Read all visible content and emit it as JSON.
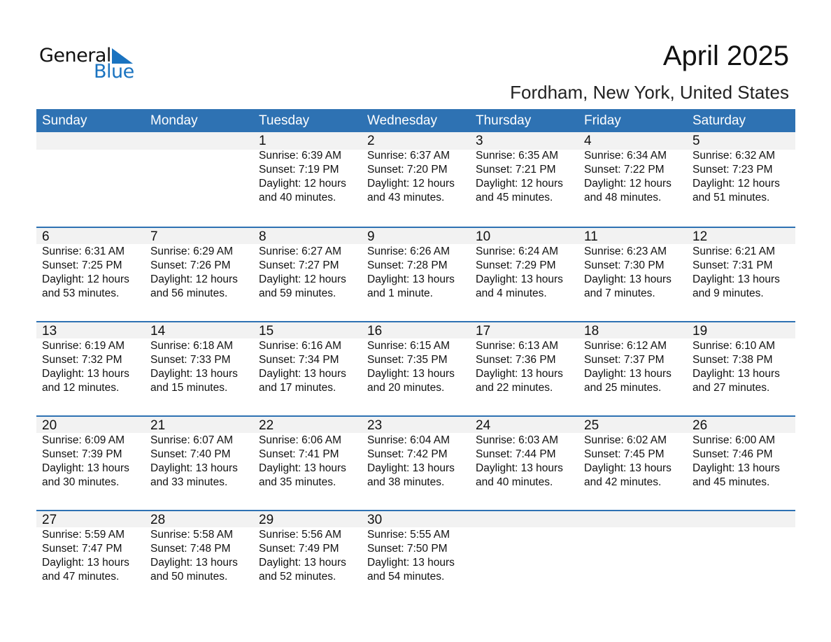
{
  "logo": {
    "text1": "General",
    "text2": "Blue"
  },
  "title": "April 2025",
  "subtitle": "Fordham, New York, United States",
  "colors": {
    "header": "#2e72b3",
    "band": "#f2f2f2",
    "logo_blue": "#1a73c0"
  },
  "weekdays": [
    "Sunday",
    "Monday",
    "Tuesday",
    "Wednesday",
    "Thursday",
    "Friday",
    "Saturday"
  ],
  "first_weekday_index": 2,
  "days": [
    {
      "d": "1",
      "sunrise": "Sunrise: 6:39 AM",
      "sunset": "Sunset: 7:19 PM",
      "daylight1": "Daylight: 12 hours",
      "daylight2": "and 40 minutes."
    },
    {
      "d": "2",
      "sunrise": "Sunrise: 6:37 AM",
      "sunset": "Sunset: 7:20 PM",
      "daylight1": "Daylight: 12 hours",
      "daylight2": "and 43 minutes."
    },
    {
      "d": "3",
      "sunrise": "Sunrise: 6:35 AM",
      "sunset": "Sunset: 7:21 PM",
      "daylight1": "Daylight: 12 hours",
      "daylight2": "and 45 minutes."
    },
    {
      "d": "4",
      "sunrise": "Sunrise: 6:34 AM",
      "sunset": "Sunset: 7:22 PM",
      "daylight1": "Daylight: 12 hours",
      "daylight2": "and 48 minutes."
    },
    {
      "d": "5",
      "sunrise": "Sunrise: 6:32 AM",
      "sunset": "Sunset: 7:23 PM",
      "daylight1": "Daylight: 12 hours",
      "daylight2": "and 51 minutes."
    },
    {
      "d": "6",
      "sunrise": "Sunrise: 6:31 AM",
      "sunset": "Sunset: 7:25 PM",
      "daylight1": "Daylight: 12 hours",
      "daylight2": "and 53 minutes."
    },
    {
      "d": "7",
      "sunrise": "Sunrise: 6:29 AM",
      "sunset": "Sunset: 7:26 PM",
      "daylight1": "Daylight: 12 hours",
      "daylight2": "and 56 minutes."
    },
    {
      "d": "8",
      "sunrise": "Sunrise: 6:27 AM",
      "sunset": "Sunset: 7:27 PM",
      "daylight1": "Daylight: 12 hours",
      "daylight2": "and 59 minutes."
    },
    {
      "d": "9",
      "sunrise": "Sunrise: 6:26 AM",
      "sunset": "Sunset: 7:28 PM",
      "daylight1": "Daylight: 13 hours",
      "daylight2": "and 1 minute."
    },
    {
      "d": "10",
      "sunrise": "Sunrise: 6:24 AM",
      "sunset": "Sunset: 7:29 PM",
      "daylight1": "Daylight: 13 hours",
      "daylight2": "and 4 minutes."
    },
    {
      "d": "11",
      "sunrise": "Sunrise: 6:23 AM",
      "sunset": "Sunset: 7:30 PM",
      "daylight1": "Daylight: 13 hours",
      "daylight2": "and 7 minutes."
    },
    {
      "d": "12",
      "sunrise": "Sunrise: 6:21 AM",
      "sunset": "Sunset: 7:31 PM",
      "daylight1": "Daylight: 13 hours",
      "daylight2": "and 9 minutes."
    },
    {
      "d": "13",
      "sunrise": "Sunrise: 6:19 AM",
      "sunset": "Sunset: 7:32 PM",
      "daylight1": "Daylight: 13 hours",
      "daylight2": "and 12 minutes."
    },
    {
      "d": "14",
      "sunrise": "Sunrise: 6:18 AM",
      "sunset": "Sunset: 7:33 PM",
      "daylight1": "Daylight: 13 hours",
      "daylight2": "and 15 minutes."
    },
    {
      "d": "15",
      "sunrise": "Sunrise: 6:16 AM",
      "sunset": "Sunset: 7:34 PM",
      "daylight1": "Daylight: 13 hours",
      "daylight2": "and 17 minutes."
    },
    {
      "d": "16",
      "sunrise": "Sunrise: 6:15 AM",
      "sunset": "Sunset: 7:35 PM",
      "daylight1": "Daylight: 13 hours",
      "daylight2": "and 20 minutes."
    },
    {
      "d": "17",
      "sunrise": "Sunrise: 6:13 AM",
      "sunset": "Sunset: 7:36 PM",
      "daylight1": "Daylight: 13 hours",
      "daylight2": "and 22 minutes."
    },
    {
      "d": "18",
      "sunrise": "Sunrise: 6:12 AM",
      "sunset": "Sunset: 7:37 PM",
      "daylight1": "Daylight: 13 hours",
      "daylight2": "and 25 minutes."
    },
    {
      "d": "19",
      "sunrise": "Sunrise: 6:10 AM",
      "sunset": "Sunset: 7:38 PM",
      "daylight1": "Daylight: 13 hours",
      "daylight2": "and 27 minutes."
    },
    {
      "d": "20",
      "sunrise": "Sunrise: 6:09 AM",
      "sunset": "Sunset: 7:39 PM",
      "daylight1": "Daylight: 13 hours",
      "daylight2": "and 30 minutes."
    },
    {
      "d": "21",
      "sunrise": "Sunrise: 6:07 AM",
      "sunset": "Sunset: 7:40 PM",
      "daylight1": "Daylight: 13 hours",
      "daylight2": "and 33 minutes."
    },
    {
      "d": "22",
      "sunrise": "Sunrise: 6:06 AM",
      "sunset": "Sunset: 7:41 PM",
      "daylight1": "Daylight: 13 hours",
      "daylight2": "and 35 minutes."
    },
    {
      "d": "23",
      "sunrise": "Sunrise: 6:04 AM",
      "sunset": "Sunset: 7:42 PM",
      "daylight1": "Daylight: 13 hours",
      "daylight2": "and 38 minutes."
    },
    {
      "d": "24",
      "sunrise": "Sunrise: 6:03 AM",
      "sunset": "Sunset: 7:44 PM",
      "daylight1": "Daylight: 13 hours",
      "daylight2": "and 40 minutes."
    },
    {
      "d": "25",
      "sunrise": "Sunrise: 6:02 AM",
      "sunset": "Sunset: 7:45 PM",
      "daylight1": "Daylight: 13 hours",
      "daylight2": "and 42 minutes."
    },
    {
      "d": "26",
      "sunrise": "Sunrise: 6:00 AM",
      "sunset": "Sunset: 7:46 PM",
      "daylight1": "Daylight: 13 hours",
      "daylight2": "and 45 minutes."
    },
    {
      "d": "27",
      "sunrise": "Sunrise: 5:59 AM",
      "sunset": "Sunset: 7:47 PM",
      "daylight1": "Daylight: 13 hours",
      "daylight2": "and 47 minutes."
    },
    {
      "d": "28",
      "sunrise": "Sunrise: 5:58 AM",
      "sunset": "Sunset: 7:48 PM",
      "daylight1": "Daylight: 13 hours",
      "daylight2": "and 50 minutes."
    },
    {
      "d": "29",
      "sunrise": "Sunrise: 5:56 AM",
      "sunset": "Sunset: 7:49 PM",
      "daylight1": "Daylight: 13 hours",
      "daylight2": "and 52 minutes."
    },
    {
      "d": "30",
      "sunrise": "Sunrise: 5:55 AM",
      "sunset": "Sunset: 7:50 PM",
      "daylight1": "Daylight: 13 hours",
      "daylight2": "and 54 minutes."
    }
  ]
}
